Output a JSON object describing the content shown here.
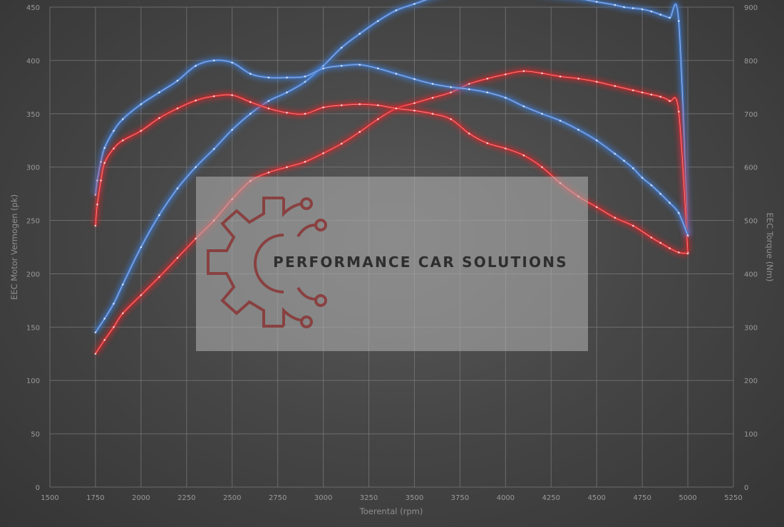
{
  "chart_data": {
    "type": "line",
    "xlabel": "Toerental (rpm)",
    "ylabel_left": "EEC Motor Vermogen (pk)",
    "ylabel_right": "EEC Torque (Nm)",
    "xlim": [
      1500,
      5250
    ],
    "ylim_left": [
      0,
      450
    ],
    "ylim_right": [
      0,
      900
    ],
    "x_ticks": [
      1500,
      1750,
      2000,
      2250,
      2500,
      2750,
      3000,
      3250,
      3500,
      3750,
      4000,
      4250,
      4500,
      4750,
      5000,
      5250
    ],
    "y_ticks_left": [
      0,
      50,
      100,
      150,
      200,
      250,
      300,
      350,
      400,
      450
    ],
    "y_ticks_right": [
      0,
      100,
      200,
      300,
      400,
      500,
      600,
      700,
      800,
      900
    ],
    "grid": true,
    "series": [
      {
        "axis": "left",
        "color": "#3f7fd8",
        "x": [
          1750,
          1800,
          1850,
          1900,
          2000,
          2100,
          2200,
          2300,
          2400,
          2500,
          2600,
          2700,
          2800,
          2900,
          3000,
          3100,
          3200,
          3300,
          3400,
          3500,
          3600,
          3700,
          3800,
          3900,
          4000,
          4100,
          4200,
          4300,
          4400,
          4500,
          4600,
          4650,
          4700,
          4750,
          4800,
          4850,
          4900,
          4950,
          5000
        ],
        "y": [
          145,
          158,
          172,
          190,
          225,
          255,
          280,
          300,
          317,
          335,
          350,
          362,
          370,
          380,
          395,
          412,
          425,
          437,
          447,
          453,
          459,
          464,
          467,
          468,
          467,
          465,
          462,
          460,
          458,
          455,
          452,
          450,
          449,
          448,
          446,
          443,
          440,
          437,
          235
        ]
      },
      {
        "axis": "left",
        "color": "#d8282c",
        "x": [
          1750,
          1800,
          1850,
          1900,
          2000,
          2100,
          2200,
          2300,
          2400,
          2500,
          2600,
          2700,
          2800,
          2900,
          3000,
          3100,
          3200,
          3300,
          3400,
          3500,
          3600,
          3700,
          3800,
          3900,
          4000,
          4100,
          4200,
          4300,
          4400,
          4500,
          4600,
          4700,
          4750,
          4800,
          4850,
          4900,
          4950,
          5000
        ],
        "y": [
          125,
          138,
          150,
          163,
          180,
          197,
          215,
          233,
          250,
          270,
          287,
          295,
          300,
          305,
          313,
          322,
          333,
          345,
          355,
          360,
          365,
          370,
          378,
          383,
          387,
          390,
          388,
          385,
          383,
          380,
          376,
          372,
          370,
          368,
          366,
          362,
          352,
          220
        ]
      },
      {
        "axis": "right",
        "color": "#3f7fd8",
        "x": [
          1750,
          1760,
          1780,
          1800,
          1850,
          1900,
          2000,
          2100,
          2200,
          2300,
          2400,
          2500,
          2600,
          2700,
          2800,
          2900,
          3000,
          3100,
          3200,
          3300,
          3400,
          3500,
          3600,
          3700,
          3800,
          3900,
          4000,
          4100,
          4200,
          4300,
          4400,
          4500,
          4600,
          4650,
          4700,
          4750,
          4800,
          4850,
          4900,
          4950,
          5000
        ],
        "y": [
          548,
          575,
          610,
          636,
          668,
          690,
          718,
          740,
          762,
          790,
          800,
          796,
          775,
          768,
          768,
          770,
          785,
          790,
          792,
          785,
          775,
          765,
          756,
          750,
          746,
          740,
          730,
          714,
          700,
          687,
          670,
          650,
          625,
          612,
          598,
          580,
          566,
          550,
          533,
          514,
          472
        ]
      },
      {
        "axis": "right",
        "color": "#d8282c",
        "x": [
          1750,
          1760,
          1780,
          1800,
          1850,
          1900,
          2000,
          2100,
          2200,
          2300,
          2400,
          2500,
          2600,
          2700,
          2800,
          2900,
          3000,
          3100,
          3200,
          3300,
          3400,
          3500,
          3600,
          3700,
          3800,
          3900,
          4000,
          4100,
          4200,
          4300,
          4400,
          4500,
          4600,
          4700,
          4800,
          4850,
          4900,
          4950,
          5000
        ],
        "y": [
          490,
          530,
          575,
          608,
          635,
          650,
          668,
          692,
          710,
          725,
          733,
          735,
          722,
          710,
          702,
          700,
          712,
          716,
          718,
          716,
          710,
          706,
          700,
          690,
          663,
          645,
          635,
          622,
          600,
          570,
          545,
          525,
          505,
          490,
          468,
          458,
          448,
          440,
          438
        ]
      }
    ]
  },
  "watermark": {
    "text": "PERFORMANCE CAR SOLUTIONS",
    "icon": "gear-circuit-logo"
  }
}
